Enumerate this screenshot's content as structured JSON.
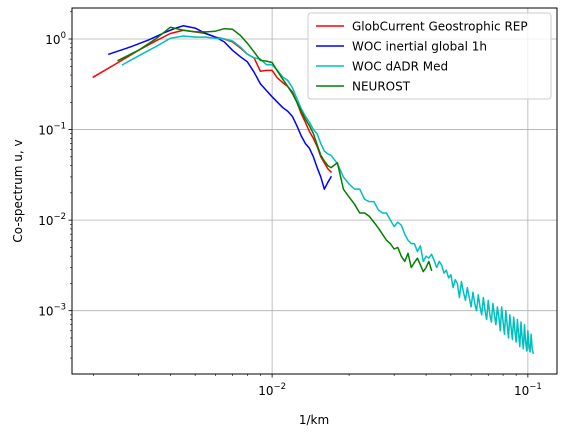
{
  "chart_data": {
    "type": "line",
    "xlabel": "1/km",
    "ylabel": "Co-spectrum u, v",
    "xscale": "log",
    "yscale": "log",
    "xlim": [
      0.00165,
      0.13
    ],
    "ylim": [
      0.0002,
      2.2
    ],
    "grid": true,
    "legend_position": "top-right",
    "x_ticks": [
      {
        "value": 0.01,
        "base": "10",
        "exp": "−2"
      },
      {
        "value": 0.1,
        "base": "10",
        "exp": "−1"
      }
    ],
    "y_ticks": [
      {
        "value": 0.001,
        "base": "10",
        "exp": "−3"
      },
      {
        "value": 0.01,
        "base": "10",
        "exp": "−2"
      },
      {
        "value": 0.1,
        "base": "10",
        "exp": "−1"
      },
      {
        "value": 1,
        "base": "10",
        "exp": "0"
      }
    ],
    "series": [
      {
        "name": "GlobCurrent Geostrophic REP",
        "color": "#ff0000",
        "x": [
          0.002,
          0.0025,
          0.003,
          0.0035,
          0.004,
          0.0045,
          0.005,
          0.0055,
          0.006,
          0.0065,
          0.007,
          0.0075,
          0.008,
          0.0085,
          0.009,
          0.0095,
          0.01,
          0.0105,
          0.011,
          0.0115,
          0.012,
          0.0125,
          0.013,
          0.0135,
          0.014,
          0.0145,
          0.015,
          0.0155,
          0.016,
          0.0165,
          0.017
        ],
        "y": [
          0.38,
          0.55,
          0.75,
          0.95,
          1.15,
          1.25,
          1.2,
          1.15,
          1.05,
          1.0,
          0.93,
          0.8,
          0.68,
          0.62,
          0.44,
          0.45,
          0.45,
          0.37,
          0.33,
          0.3,
          0.26,
          0.2,
          0.15,
          0.12,
          0.095,
          0.08,
          0.065,
          0.05,
          0.043,
          0.037,
          0.034
        ]
      },
      {
        "name": "WOC inertial global 1h",
        "color": "#0000ff",
        "x": [
          0.0023,
          0.0028,
          0.0033,
          0.0038,
          0.0042,
          0.0045,
          0.005,
          0.0055,
          0.006,
          0.0065,
          0.007,
          0.0075,
          0.008,
          0.0085,
          0.009,
          0.0095,
          0.01,
          0.0105,
          0.011,
          0.0115,
          0.012,
          0.0125,
          0.013,
          0.0135,
          0.014,
          0.0145,
          0.015,
          0.0155,
          0.016,
          0.0165,
          0.017
        ],
        "y": [
          0.68,
          0.82,
          0.98,
          1.18,
          1.32,
          1.4,
          1.32,
          1.15,
          1.05,
          0.93,
          0.75,
          0.64,
          0.56,
          0.43,
          0.32,
          0.27,
          0.23,
          0.2,
          0.175,
          0.16,
          0.14,
          0.11,
          0.085,
          0.07,
          0.062,
          0.05,
          0.038,
          0.03,
          0.022,
          0.026,
          0.03
        ]
      },
      {
        "name": "WOC dADR Med",
        "color": "#00bfbf",
        "x": [
          0.0026,
          0.003,
          0.0035,
          0.004,
          0.0045,
          0.005,
          0.0055,
          0.006,
          0.0065,
          0.007,
          0.0075,
          0.008,
          0.0085,
          0.009,
          0.0095,
          0.01,
          0.0105,
          0.011,
          0.0115,
          0.012,
          0.0125,
          0.013,
          0.0135,
          0.014,
          0.0145,
          0.015,
          0.0155,
          0.016,
          0.0165,
          0.017,
          0.018,
          0.019,
          0.02,
          0.021,
          0.022,
          0.023,
          0.024,
          0.025,
          0.026,
          0.027,
          0.028,
          0.029,
          0.03,
          0.031,
          0.032,
          0.033,
          0.034,
          0.035,
          0.036,
          0.037,
          0.038,
          0.039,
          0.04,
          0.041,
          0.042,
          0.043,
          0.044,
          0.045,
          0.046,
          0.047,
          0.048,
          0.049,
          0.05,
          0.051,
          0.052,
          0.053,
          0.054,
          0.055,
          0.056,
          0.057,
          0.058,
          0.059,
          0.06,
          0.061,
          0.062,
          0.063,
          0.064,
          0.065,
          0.066,
          0.067,
          0.068,
          0.069,
          0.07,
          0.071,
          0.072,
          0.073,
          0.074,
          0.075,
          0.076,
          0.077,
          0.078,
          0.079,
          0.08,
          0.081,
          0.082,
          0.083,
          0.084,
          0.085,
          0.086,
          0.087,
          0.088,
          0.089,
          0.09,
          0.091,
          0.092,
          0.093,
          0.094,
          0.095,
          0.096,
          0.097,
          0.098,
          0.099,
          0.1,
          0.101,
          0.102,
          0.103,
          0.104,
          0.105
        ],
        "y": [
          0.52,
          0.65,
          0.82,
          1.02,
          1.08,
          1.05,
          1.05,
          1.02,
          1.0,
          0.95,
          0.82,
          0.68,
          0.62,
          0.6,
          0.52,
          0.52,
          0.45,
          0.38,
          0.35,
          0.29,
          0.22,
          0.17,
          0.14,
          0.12,
          0.1,
          0.09,
          0.07,
          0.058,
          0.054,
          0.052,
          0.042,
          0.03,
          0.025,
          0.022,
          0.022,
          0.017,
          0.016,
          0.016,
          0.013,
          0.012,
          0.012,
          0.01,
          0.0085,
          0.0095,
          0.0088,
          0.007,
          0.006,
          0.0055,
          0.0055,
          0.0045,
          0.0052,
          0.0035,
          0.004,
          0.0038,
          0.0042,
          0.0036,
          0.003,
          0.0035,
          0.0032,
          0.0026,
          0.0028,
          0.0023,
          0.0025,
          0.0018,
          0.0022,
          0.002,
          0.0014,
          0.0021,
          0.0016,
          0.0013,
          0.0018,
          0.0014,
          0.0011,
          0.0016,
          0.0012,
          0.001,
          0.0015,
          0.0011,
          0.0009,
          0.0014,
          0.001,
          0.0008,
          0.0013,
          0.0009,
          0.00075,
          0.0012,
          0.0009,
          0.0007,
          0.0011,
          0.00085,
          0.0006,
          0.0011,
          0.00075,
          0.00055,
          0.001,
          0.0007,
          0.0005,
          0.0009,
          0.00065,
          0.00048,
          0.00085,
          0.0006,
          0.00045,
          0.0008,
          0.00055,
          0.0004,
          0.00075,
          0.0005,
          0.00038,
          0.0007,
          0.00045,
          0.00036,
          0.0006,
          0.0004,
          0.00035,
          0.00055,
          0.00038,
          0.00034
        ]
      },
      {
        "name": "NEUROST",
        "color": "#008000",
        "x": [
          0.0025,
          0.003,
          0.0035,
          0.0038,
          0.004,
          0.0045,
          0.005,
          0.0055,
          0.006,
          0.0065,
          0.007,
          0.0075,
          0.008,
          0.0085,
          0.009,
          0.0095,
          0.01,
          0.0105,
          0.011,
          0.0115,
          0.012,
          0.0125,
          0.013,
          0.0135,
          0.014,
          0.0145,
          0.015,
          0.0155,
          0.016,
          0.0165,
          0.017,
          0.018,
          0.019,
          0.02,
          0.021,
          0.022,
          0.023,
          0.024,
          0.025,
          0.026,
          0.027,
          0.028,
          0.029,
          0.03,
          0.031,
          0.032,
          0.033,
          0.034,
          0.035,
          0.036,
          0.037,
          0.038,
          0.039,
          0.04,
          0.041,
          0.042
        ],
        "y": [
          0.58,
          0.75,
          1.0,
          1.2,
          1.35,
          1.25,
          1.2,
          1.2,
          1.22,
          1.3,
          1.28,
          1.1,
          0.9,
          0.72,
          0.58,
          0.57,
          0.55,
          0.44,
          0.36,
          0.3,
          0.25,
          0.2,
          0.16,
          0.13,
          0.11,
          0.09,
          0.068,
          0.052,
          0.045,
          0.04,
          0.038,
          0.043,
          0.022,
          0.018,
          0.015,
          0.012,
          0.012,
          0.011,
          0.0095,
          0.0082,
          0.007,
          0.006,
          0.0055,
          0.0048,
          0.005,
          0.004,
          0.0035,
          0.0043,
          0.003,
          0.0034,
          0.0038,
          0.0032,
          0.0027,
          0.003,
          0.0035,
          0.0028
        ]
      }
    ]
  }
}
